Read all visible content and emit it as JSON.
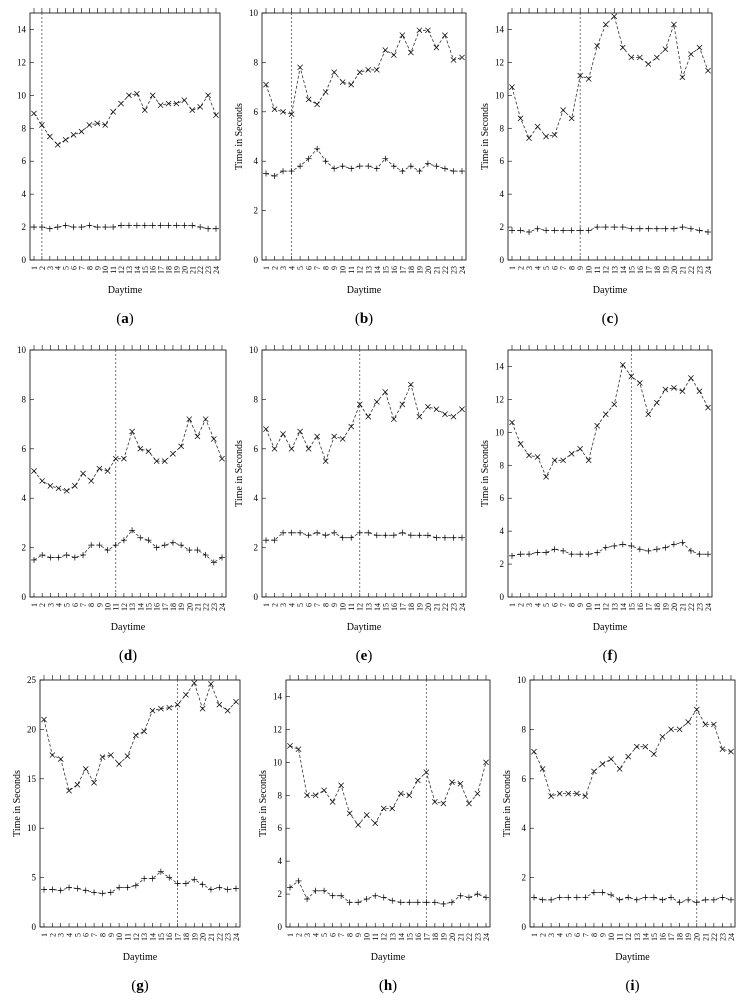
{
  "chart_data": [
    {
      "type": "line",
      "panel": "a",
      "ylabel": "",
      "xlabel": "Daytime",
      "x": [
        1,
        2,
        3,
        4,
        5,
        6,
        7,
        8,
        9,
        10,
        11,
        12,
        13,
        14,
        15,
        16,
        17,
        18,
        19,
        20,
        21,
        22,
        23,
        24
      ],
      "ylim": [
        0,
        15
      ],
      "yticks": [
        0,
        2,
        4,
        6,
        8,
        10,
        12,
        14
      ],
      "vline": 2,
      "series": [
        {
          "marker": "x",
          "values": [
            8.9,
            8.2,
            7.5,
            7.0,
            7.3,
            7.6,
            7.8,
            8.2,
            8.3,
            8.2,
            9.0,
            9.5,
            10.0,
            10.1,
            9.1,
            10.0,
            9.4,
            9.5,
            9.5,
            9.7,
            9.1,
            9.3,
            10.0,
            8.8
          ]
        },
        {
          "marker": "plus",
          "values": [
            2.0,
            2.0,
            1.9,
            2.0,
            2.1,
            2.0,
            2.0,
            2.1,
            2.0,
            2.0,
            2.0,
            2.1,
            2.1,
            2.1,
            2.1,
            2.1,
            2.1,
            2.1,
            2.1,
            2.1,
            2.1,
            2.0,
            1.9,
            1.9
          ]
        }
      ]
    },
    {
      "type": "line",
      "panel": "b",
      "ylabel": "Time in Seconds",
      "xlabel": "Daytime",
      "x": [
        1,
        2,
        3,
        4,
        5,
        6,
        7,
        8,
        9,
        10,
        11,
        12,
        13,
        14,
        15,
        16,
        17,
        18,
        19,
        20,
        21,
        22,
        23,
        24
      ],
      "ylim": [
        0,
        10
      ],
      "yticks": [
        0,
        2,
        4,
        6,
        8,
        10
      ],
      "vline": 4,
      "series": [
        {
          "marker": "x",
          "values": [
            7.1,
            6.1,
            6.0,
            5.9,
            7.8,
            6.5,
            6.3,
            6.8,
            7.6,
            7.2,
            7.1,
            7.6,
            7.7,
            7.7,
            8.5,
            8.3,
            9.1,
            8.4,
            9.3,
            9.3,
            8.6,
            9.1,
            8.1,
            8.2
          ]
        },
        {
          "marker": "plus",
          "values": [
            3.5,
            3.4,
            3.6,
            3.6,
            3.8,
            4.1,
            4.5,
            4.0,
            3.7,
            3.8,
            3.7,
            3.8,
            3.8,
            3.7,
            4.1,
            3.8,
            3.6,
            3.8,
            3.6,
            3.9,
            3.8,
            3.7,
            3.6,
            3.6
          ]
        }
      ]
    },
    {
      "type": "line",
      "panel": "c",
      "ylabel": "Time in Seconds",
      "xlabel": "Daytime",
      "x": [
        1,
        2,
        3,
        4,
        5,
        6,
        7,
        8,
        9,
        10,
        11,
        12,
        13,
        14,
        15,
        16,
        17,
        18,
        19,
        20,
        21,
        22,
        23,
        24
      ],
      "ylim": [
        0,
        15
      ],
      "yticks": [
        0,
        2,
        4,
        6,
        8,
        10,
        12,
        14
      ],
      "vline": 9,
      "series": [
        {
          "marker": "x",
          "values": [
            10.5,
            8.6,
            7.4,
            8.1,
            7.5,
            7.6,
            9.1,
            8.6,
            11.2,
            11.0,
            13.0,
            14.3,
            14.8,
            12.9,
            12.3,
            12.3,
            11.9,
            12.3,
            12.8,
            14.3,
            11.1,
            12.5,
            12.9,
            11.5
          ]
        },
        {
          "marker": "plus",
          "values": [
            1.8,
            1.8,
            1.7,
            1.9,
            1.8,
            1.8,
            1.8,
            1.8,
            1.8,
            1.8,
            2.0,
            2.0,
            2.0,
            2.0,
            1.9,
            1.9,
            1.9,
            1.9,
            1.9,
            1.9,
            2.0,
            1.9,
            1.8,
            1.7
          ]
        }
      ]
    },
    {
      "type": "line",
      "panel": "d",
      "ylabel": "",
      "xlabel": "Daytime",
      "x": [
        1,
        2,
        3,
        4,
        5,
        6,
        7,
        8,
        9,
        10,
        11,
        12,
        13,
        14,
        15,
        16,
        17,
        18,
        19,
        20,
        21,
        22,
        23,
        24
      ],
      "ylim": [
        0,
        10
      ],
      "yticks": [
        0,
        2,
        4,
        6,
        8,
        10
      ],
      "vline": 11,
      "series": [
        {
          "marker": "x",
          "values": [
            5.1,
            4.7,
            4.5,
            4.4,
            4.3,
            4.5,
            5.0,
            4.7,
            5.2,
            5.1,
            5.6,
            5.6,
            6.7,
            6.0,
            5.9,
            5.5,
            5.5,
            5.8,
            6.1,
            7.2,
            6.5,
            7.2,
            6.4,
            5.6
          ]
        },
        {
          "marker": "plus",
          "values": [
            1.5,
            1.7,
            1.6,
            1.6,
            1.7,
            1.6,
            1.7,
            2.1,
            2.1,
            1.9,
            2.1,
            2.3,
            2.7,
            2.4,
            2.3,
            2.0,
            2.1,
            2.2,
            2.1,
            1.9,
            1.9,
            1.7,
            1.4,
            1.6
          ]
        }
      ]
    },
    {
      "type": "line",
      "panel": "e",
      "ylabel": "Time in Seconds",
      "xlabel": "Daytime",
      "x": [
        1,
        2,
        3,
        4,
        5,
        6,
        7,
        8,
        9,
        10,
        11,
        12,
        13,
        14,
        15,
        16,
        17,
        18,
        19,
        20,
        21,
        22,
        23,
        24
      ],
      "ylim": [
        0,
        10
      ],
      "yticks": [
        0,
        2,
        4,
        6,
        8,
        10
      ],
      "vline": 12,
      "series": [
        {
          "marker": "x",
          "values": [
            6.8,
            6.0,
            6.6,
            6.0,
            6.7,
            6.0,
            6.5,
            5.5,
            6.5,
            6.4,
            6.9,
            7.8,
            7.3,
            7.9,
            8.3,
            7.2,
            7.8,
            8.6,
            7.3,
            7.7,
            7.6,
            7.4,
            7.3,
            7.6
          ]
        },
        {
          "marker": "plus",
          "values": [
            2.3,
            2.3,
            2.6,
            2.6,
            2.6,
            2.5,
            2.6,
            2.5,
            2.6,
            2.4,
            2.4,
            2.6,
            2.6,
            2.5,
            2.5,
            2.5,
            2.6,
            2.5,
            2.5,
            2.5,
            2.4,
            2.4,
            2.4,
            2.4
          ]
        }
      ]
    },
    {
      "type": "line",
      "panel": "f",
      "ylabel": "Time in Seconds",
      "xlabel": "Daytime",
      "x": [
        1,
        2,
        3,
        4,
        5,
        6,
        7,
        8,
        9,
        10,
        11,
        12,
        13,
        14,
        15,
        16,
        17,
        18,
        19,
        20,
        21,
        22,
        23,
        24
      ],
      "ylim": [
        0,
        15
      ],
      "yticks": [
        0,
        2,
        4,
        6,
        8,
        10,
        12,
        14
      ],
      "vline": 15,
      "series": [
        {
          "marker": "x",
          "values": [
            10.6,
            9.3,
            8.6,
            8.5,
            7.3,
            8.3,
            8.3,
            8.7,
            9.0,
            8.3,
            10.4,
            11.1,
            11.7,
            14.1,
            13.4,
            13.0,
            11.1,
            11.8,
            12.6,
            12.7,
            12.5,
            13.3,
            12.5,
            11.5
          ]
        },
        {
          "marker": "plus",
          "values": [
            2.5,
            2.6,
            2.6,
            2.7,
            2.7,
            2.9,
            2.8,
            2.6,
            2.6,
            2.6,
            2.7,
            3.0,
            3.1,
            3.2,
            3.1,
            2.9,
            2.8,
            2.9,
            3.0,
            3.2,
            3.3,
            2.8,
            2.6,
            2.6
          ]
        }
      ]
    },
    {
      "type": "line",
      "panel": "g",
      "ylabel": "Time in Seconds",
      "xlabel": "Daytime",
      "x": [
        1,
        2,
        3,
        4,
        5,
        6,
        7,
        8,
        9,
        10,
        11,
        12,
        13,
        14,
        15,
        16,
        17,
        18,
        19,
        20,
        21,
        22,
        23,
        24
      ],
      "ylim": [
        0,
        25
      ],
      "yticks": [
        0,
        5,
        10,
        15,
        20,
        25
      ],
      "vline": 17,
      "series": [
        {
          "marker": "x",
          "values": [
            21.0,
            17.4,
            17.0,
            13.8,
            14.4,
            16.0,
            14.6,
            17.2,
            17.4,
            16.5,
            17.3,
            19.4,
            19.8,
            21.9,
            22.1,
            22.2,
            22.5,
            23.5,
            24.7,
            22.1,
            24.6,
            22.5,
            21.9,
            22.8
          ]
        },
        {
          "marker": "plus",
          "values": [
            3.8,
            3.8,
            3.7,
            4.0,
            3.9,
            3.7,
            3.5,
            3.4,
            3.5,
            4.0,
            4.0,
            4.2,
            4.9,
            4.9,
            5.6,
            5.0,
            4.4,
            4.4,
            4.8,
            4.3,
            3.8,
            4.0,
            3.8,
            3.9
          ]
        }
      ]
    },
    {
      "type": "line",
      "panel": "h",
      "ylabel": "Time in Seconds",
      "xlabel": "Daytime",
      "x": [
        1,
        2,
        3,
        4,
        5,
        6,
        7,
        8,
        9,
        10,
        11,
        12,
        13,
        14,
        15,
        16,
        17,
        18,
        19,
        20,
        21,
        22,
        23,
        24
      ],
      "ylim": [
        0,
        15
      ],
      "yticks": [
        0,
        2,
        4,
        6,
        8,
        10,
        12,
        14
      ],
      "vline": 17,
      "series": [
        {
          "marker": "x",
          "values": [
            11.0,
            10.8,
            8.0,
            8.0,
            8.3,
            7.6,
            8.6,
            6.9,
            6.2,
            6.8,
            6.3,
            7.2,
            7.2,
            8.1,
            8.0,
            8.9,
            9.4,
            7.6,
            7.5,
            8.8,
            8.7,
            7.5,
            8.1,
            10.0
          ]
        },
        {
          "marker": "plus",
          "values": [
            2.4,
            2.8,
            1.7,
            2.2,
            2.2,
            1.9,
            1.9,
            1.5,
            1.5,
            1.7,
            1.9,
            1.8,
            1.6,
            1.5,
            1.5,
            1.5,
            1.5,
            1.5,
            1.4,
            1.5,
            1.9,
            1.8,
            2.0,
            1.8
          ]
        }
      ]
    },
    {
      "type": "line",
      "panel": "i",
      "ylabel": "Time in Seconds",
      "xlabel": "Daytime",
      "x": [
        1,
        2,
        3,
        4,
        5,
        6,
        7,
        8,
        9,
        10,
        11,
        12,
        13,
        14,
        15,
        16,
        17,
        18,
        19,
        20,
        21,
        22,
        23,
        24
      ],
      "ylim": [
        0,
        10
      ],
      "yticks": [
        0,
        2,
        4,
        6,
        8,
        10
      ],
      "vline": 20,
      "series": [
        {
          "marker": "x",
          "values": [
            7.1,
            6.4,
            5.3,
            5.4,
            5.4,
            5.4,
            5.3,
            6.3,
            6.6,
            6.8,
            6.4,
            6.9,
            7.3,
            7.3,
            7.0,
            7.7,
            8.0,
            8.0,
            8.3,
            8.8,
            8.2,
            8.2,
            7.2,
            7.1
          ]
        },
        {
          "marker": "plus",
          "values": [
            1.2,
            1.1,
            1.1,
            1.2,
            1.2,
            1.2,
            1.2,
            1.4,
            1.4,
            1.3,
            1.1,
            1.2,
            1.1,
            1.2,
            1.2,
            1.1,
            1.2,
            1.0,
            1.1,
            1.0,
            1.1,
            1.1,
            1.2,
            1.1
          ]
        }
      ]
    }
  ],
  "captions": [
    "a",
    "b",
    "c",
    "d",
    "e",
    "f",
    "g",
    "h",
    "i"
  ]
}
